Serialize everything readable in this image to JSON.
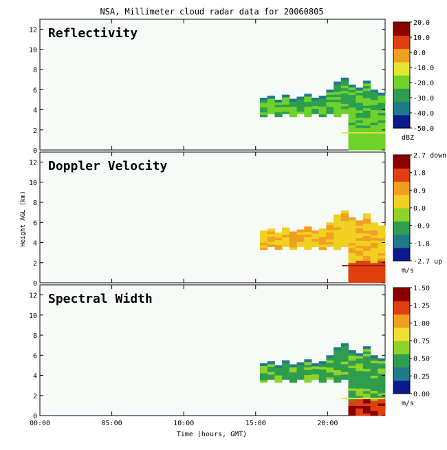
{
  "chart_data": {
    "title": "NSA, Millimeter cloud radar data for 20060805",
    "type": "heatmap",
    "xlabel": "Time (hours, GMT)",
    "ylabel": "Height AGL (km)",
    "x_ticks": [
      "00:00",
      "05:00",
      "10:00",
      "15:00",
      "20:00"
    ],
    "x_range_hours": [
      0,
      24
    ],
    "y_ticks": [
      0,
      2,
      4,
      6,
      8,
      10,
      12
    ],
    "y_range_km": [
      0,
      13
    ],
    "panels": [
      {
        "name": "Reflectivity",
        "unit": "dBZ",
        "colorbar_ticks": [
          "20.0",
          "10.0",
          "0.0",
          "-10.0",
          "-20.0",
          "-30.0",
          "-40.0",
          "-50.0"
        ],
        "colorbar_range": [
          -50,
          20
        ],
        "colors": [
          "#0a1a8c",
          "#1f7a8a",
          "#2e9e4e",
          "#6fd22a",
          "#e6e632",
          "#f0a020",
          "#e04010",
          "#8b0000"
        ]
      },
      {
        "name": "Doppler Velocity",
        "unit": "m/s",
        "colorbar_ticks": [
          "2.7 down",
          "1.8",
          "0.9",
          "0.0",
          "-0.9",
          "-1.8",
          "-2.7 up"
        ],
        "colorbar_range": [
          -2.7,
          2.7
        ],
        "colors": [
          "#0a1a8c",
          "#1f7a8a",
          "#2e9e4e",
          "#8fd22a",
          "#f0d020",
          "#f0a020",
          "#e04010",
          "#8b0000"
        ]
      },
      {
        "name": "Spectral Width",
        "unit": "m/s",
        "colorbar_ticks": [
          "1.50",
          "1.25",
          "1.00",
          "0.75",
          "0.50",
          "0.25",
          "0.00"
        ],
        "colorbar_range": [
          0,
          1.5
        ],
        "colors": [
          "#0a1a8c",
          "#1f7a8a",
          "#2e9e4e",
          "#8fd22a",
          "#f0e030",
          "#f0a020",
          "#e04010",
          "#8b0000"
        ]
      }
    ],
    "cloud_region": {
      "start_hour": 15.3,
      "end_hour": 24,
      "base_km_before_21h": 3.3,
      "top_km": [
        5.2,
        5.4,
        5.0,
        5.5,
        5.1,
        5.3,
        5.6,
        5.2,
        5.4,
        6.0,
        6.8,
        7.2,
        6.5,
        6.2,
        6.9,
        6.0,
        5.7,
        5.0
      ],
      "precip_to_surface_from_hour": 21,
      "layer_height_km": 1.7
    }
  }
}
